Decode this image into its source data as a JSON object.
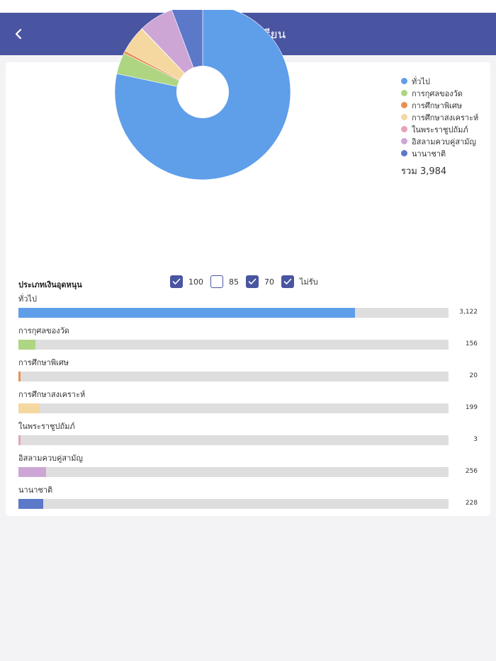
{
  "header": {
    "title": "ข้อมูลโรงเรียน"
  },
  "legend": {
    "items": [
      {
        "label": "ทั่วไป",
        "color": "#5f9ee9"
      },
      {
        "label": "การกุศลของวัด",
        "color": "#aed582"
      },
      {
        "label": "การศึกษาพิเศษ",
        "color": "#ea9151"
      },
      {
        "label": "การศึกษาสงเคราะห์",
        "color": "#f5d7a0"
      },
      {
        "label": "ในพระราชูปถัมภ์",
        "color": "#e5a4b4"
      },
      {
        "label": "อิสลามควบคู่สามัญ",
        "color": "#cda6d5"
      },
      {
        "label": "นานาชาติ",
        "color": "#5c78c9"
      }
    ],
    "total_text": "รวม 3,984"
  },
  "filter": {
    "label": "ประเภทเงินอุดหนุน",
    "options": [
      {
        "label": "100",
        "checked": true
      },
      {
        "label": "85",
        "checked": false
      },
      {
        "label": "70",
        "checked": true
      },
      {
        "label": "ไม่รับ",
        "checked": true
      }
    ]
  },
  "bars": [
    {
      "label": "ทั่วไป",
      "value_text": "3,122",
      "fill": 0.783
    },
    {
      "label": "การกุศลของวัด",
      "value_text": "156",
      "fill": 0.039
    },
    {
      "label": "การศึกษาพิเศษ",
      "value_text": "20",
      "fill": 0.005
    },
    {
      "label": "การศึกษาสงเคราะห์",
      "value_text": "199",
      "fill": 0.05
    },
    {
      "label": "ในพระราชูปถัมภ์",
      "value_text": "3",
      "fill": 0.001
    },
    {
      "label": "อิสลามควบคู่สามัญ",
      "value_text": "256",
      "fill": 0.064
    },
    {
      "label": "นานาชาติ",
      "value_text": "228",
      "fill": 0.057
    }
  ],
  "chart_data": {
    "type": "pie",
    "categories": [
      "ทั่วไป",
      "การกุศลของวัด",
      "การศึกษาพิเศษ",
      "การศึกษาสงเคราะห์",
      "ในพระราชูปถัมภ์",
      "อิสลามควบคู่สามัญ",
      "นานาชาติ"
    ],
    "values": [
      3122,
      156,
      20,
      199,
      3,
      256,
      228
    ],
    "colors": [
      "#5f9ee9",
      "#aed582",
      "#ea9151",
      "#f5d7a0",
      "#e5a4b4",
      "#cda6d5",
      "#5c78c9"
    ],
    "total": 3984,
    "donut": true,
    "legend": "right"
  }
}
